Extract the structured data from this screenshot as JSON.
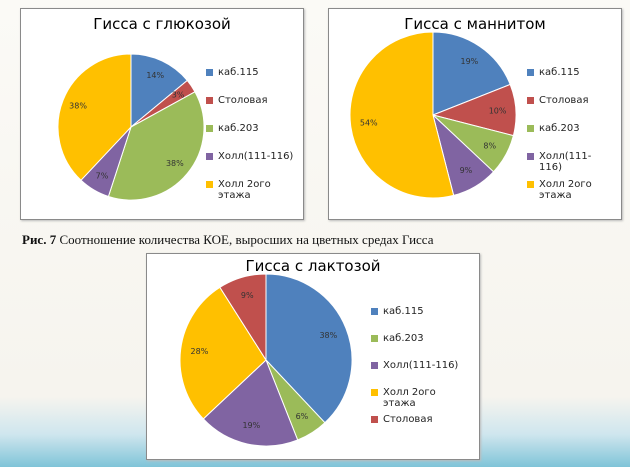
{
  "chart_data": [
    {
      "type": "pie",
      "title": "Гисса с глюкозой",
      "categories": [
        "каб.115",
        "Столовая",
        "каб.203",
        "Холл(111-116)",
        "Холл 2ого этажа"
      ],
      "values": [
        14,
        3,
        38,
        7,
        38
      ],
      "value_labels": [
        "14%",
        "3%",
        "38%",
        "7%",
        "38%"
      ],
      "colors": [
        "#4f81bd",
        "#c0504d",
        "#9bbb59",
        "#8064a2",
        "#ffc000"
      ]
    },
    {
      "type": "pie",
      "title": "Гисса с маннитом",
      "categories": [
        "каб.115",
        "Столовая",
        "каб.203",
        "Холл(111-116)",
        "Холл 2ого этажа"
      ],
      "values": [
        19,
        10,
        8,
        9,
        54
      ],
      "value_labels": [
        "19%",
        "10%",
        "8%",
        "9%",
        "54%"
      ],
      "colors": [
        "#4f81bd",
        "#c0504d",
        "#9bbb59",
        "#8064a2",
        "#ffc000"
      ]
    },
    {
      "type": "pie",
      "title": "Гисса с лактозой",
      "categories": [
        "каб.115",
        "каб.203",
        "Холл(111-116)",
        "Холл 2ого этажа",
        "Столовая"
      ],
      "values": [
        38,
        6,
        19,
        28,
        9
      ],
      "value_labels": [
        "38%",
        "6%",
        "19%",
        "28%",
        "9%"
      ],
      "colors": [
        "#4f81bd",
        "#9bbb59",
        "#8064a2",
        "#ffc000",
        "#c0504d"
      ]
    }
  ],
  "caption": {
    "label": "Рис. 7",
    "text": "Соотношение количества КОЕ, выросших на цветных средах Гисса"
  }
}
